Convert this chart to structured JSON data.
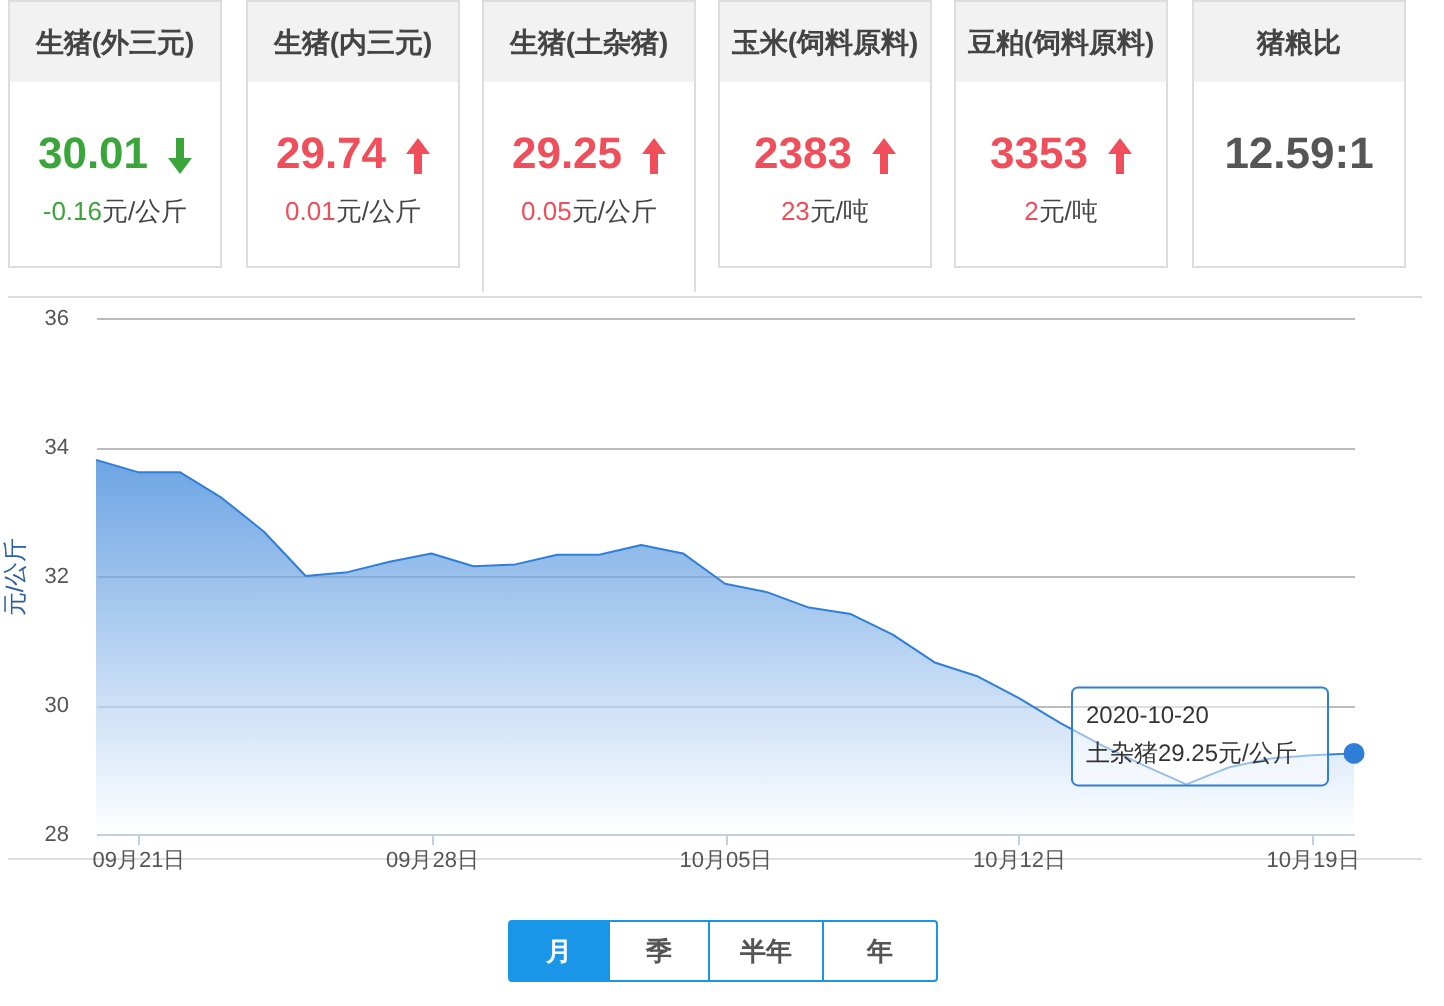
{
  "chart_data": [
    {
      "type": "other",
      "categories": [
        "生猪(外三元)",
        "生猪(内三元)",
        "生猪(土杂猪)",
        "玉米(饲料原料)",
        "豆粕(饲料原料)",
        "猪粮比"
      ],
      "value_labels": [
        "30.01",
        "29.74",
        "29.25",
        "2383",
        "3353",
        "12.59:1"
      ],
      "annotations": [
        "-0.16元/公斤",
        "0.01元/公斤",
        "0.05元/公斤",
        "23元/吨",
        "2元/吨",
        null
      ]
    },
    {
      "type": "area",
      "ylabel": "元/公斤",
      "x": [
        "2020-09-20",
        "2020-09-21",
        "2020-09-22",
        "2020-09-23",
        "2020-09-24",
        "2020-09-25",
        "2020-09-26",
        "2020-09-27",
        "2020-09-28",
        "2020-09-29",
        "2020-09-30",
        "2020-10-01",
        "2020-10-02",
        "2020-10-03",
        "2020-10-04",
        "2020-10-05",
        "2020-10-06",
        "2020-10-07",
        "2020-10-08",
        "2020-10-09",
        "2020-10-10",
        "2020-10-11",
        "2020-10-12",
        "2020-10-13",
        "2020-10-14",
        "2020-10-15",
        "2020-10-16",
        "2020-10-17",
        "2020-10-18",
        "2020-10-19",
        "2020-10-20"
      ],
      "series": [
        {
          "color": "#2f7ed8",
          "values": [
            33.8,
            33.61,
            33.61,
            33.21,
            32.69,
            32.0,
            32.06,
            32.22,
            32.35,
            32.15,
            32.18,
            32.33,
            32.33,
            32.48,
            32.35,
            31.88,
            31.75,
            31.51,
            31.41,
            31.09,
            30.66,
            30.45,
            30.11,
            29.72,
            29.37,
            29.06,
            28.77,
            29.03,
            29.17,
            29.22,
            29.25
          ]
        },
        {
          "type": "scatter",
          "color": "#2f7ed8",
          "x": [
            "2020-10-20"
          ],
          "values": [
            29.25
          ]
        }
      ],
      "xlim": [
        "2020-09-20",
        "2020-10-20"
      ],
      "xticks": [
        {
          "value": "2020-09-21",
          "label": "09月21日"
        },
        {
          "value": "2020-09-28",
          "label": "09月28日"
        },
        {
          "value": "2020-10-05",
          "label": "10月05日"
        },
        {
          "value": "2020-10-12",
          "label": "10月12日"
        },
        {
          "value": "2020-10-19",
          "label": "10月19日"
        }
      ],
      "ylim": [
        28,
        36
      ],
      "yticks": [
        28,
        30,
        32,
        34,
        36
      ],
      "grid": "y",
      "annotations": [
        {
          "text": "2020-10-20\n土杂猪29.25元/公斤",
          "x": "2020-10-20",
          "y": 29.25
        }
      ]
    },
    {
      "type": "other",
      "categories": [
        "月",
        "季",
        "半年",
        "年"
      ]
    }
  ]
}
